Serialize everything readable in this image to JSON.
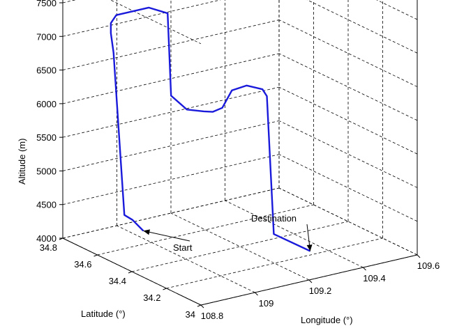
{
  "chart_data": {
    "type": "line3d",
    "title": "",
    "xlabel": "Longitude (°)",
    "ylabel": "Latitude (°)",
    "zlabel": "Altitude (m)",
    "xlim": [
      108.8,
      109.6
    ],
    "ylim": [
      34,
      34.8
    ],
    "zlim": [
      4000,
      7500
    ],
    "xticks": [
      "108.8",
      "109",
      "109.2",
      "109.4",
      "109.6"
    ],
    "yticks": [
      "34",
      "34.2",
      "34.4",
      "34.6",
      "34.8"
    ],
    "zticks": [
      "4000",
      "4500",
      "5000",
      "5500",
      "6000",
      "6500",
      "7000",
      "7500"
    ],
    "grid": true,
    "line_color": "#1a1adb",
    "annotations": [
      {
        "text": "Start",
        "x": 108.97,
        "y": 34.6,
        "z": 4200
      },
      {
        "text": "Destination",
        "x": 109.3,
        "y": 34.15,
        "z": 4150
      }
    ],
    "path": {
      "x": [
        108.97,
        108.93,
        108.9,
        108.86,
        108.85,
        108.85,
        108.87,
        108.99,
        109.06,
        109.06,
        109.08,
        109.13,
        109.15,
        109.16,
        109.17,
        109.18,
        109.2,
        109.21,
        109.21,
        109.3
      ],
      "y": [
        34.6,
        34.6,
        34.6,
        34.6,
        34.6,
        34.6,
        34.6,
        34.6,
        34.6,
        34.58,
        34.52,
        34.5,
        34.48,
        34.44,
        34.4,
        34.33,
        34.27,
        34.26,
        34.22,
        34.15
      ],
      "z": [
        4200,
        4400,
        4500,
        6950,
        7250,
        7400,
        7500,
        7500,
        7350,
        6150,
        6000,
        5950,
        5950,
        6050,
        6350,
        6500,
        6500,
        6400,
        4400,
        4150
      ]
    }
  }
}
